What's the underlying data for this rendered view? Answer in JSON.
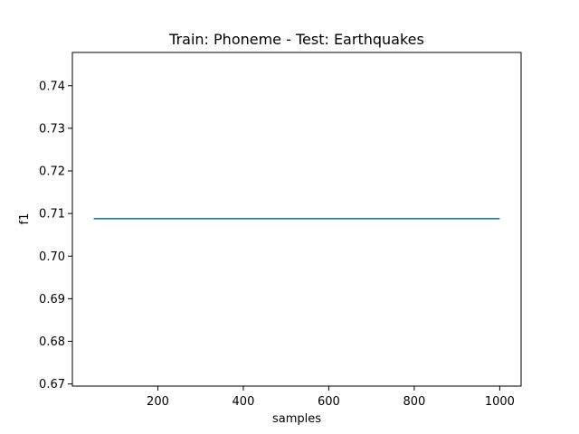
{
  "chart_data": {
    "type": "line",
    "title": "Train: Phoneme - Test: Earthquakes",
    "xlabel": "samples",
    "ylabel": "f1",
    "xlim": [
      0,
      1050
    ],
    "ylim": [
      0.6695,
      0.7478
    ],
    "x_ticks": [
      200,
      400,
      600,
      800,
      1000
    ],
    "y_ticks": [
      0.67,
      0.68,
      0.69,
      0.7,
      0.71,
      0.72,
      0.73,
      0.74
    ],
    "x_tick_labels": [
      "200",
      "400",
      "600",
      "800",
      "1000"
    ],
    "y_tick_labels": [
      "0.67",
      "0.68",
      "0.69",
      "0.70",
      "0.71",
      "0.72",
      "0.73",
      "0.74"
    ],
    "grid": false,
    "series": [
      {
        "color": "#1f77b4",
        "x": [
          50,
          1000
        ],
        "y": [
          0.7088,
          0.7088
        ]
      }
    ]
  }
}
